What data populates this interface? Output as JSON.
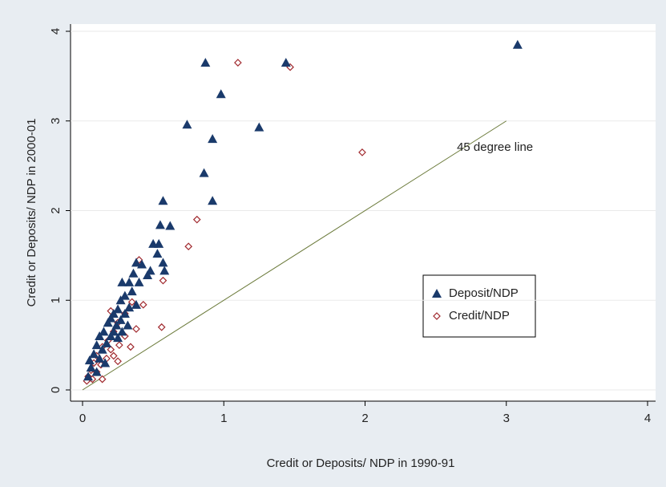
{
  "chart_data": {
    "type": "scatter",
    "x_label": "Credit or Deposits/ NDP in 1990-91",
    "y_label": "Credit or Deposits/ NDP in 2000-01",
    "xlim": [
      0,
      4
    ],
    "ylim": [
      0,
      4
    ],
    "xticks": [
      0,
      1,
      2,
      3,
      4
    ],
    "yticks": [
      0,
      1,
      2,
      3,
      4
    ],
    "grid": true,
    "legend": "right",
    "series": [
      {
        "name": "Deposit/NDP",
        "color": "#1a3a6b",
        "marker": "triangle",
        "x": [
          3.08,
          0.87,
          1.44,
          0.98,
          0.74,
          1.25,
          0.92,
          0.86,
          0.57,
          0.92,
          0.55,
          0.62,
          0.5,
          0.54,
          0.53,
          0.57,
          0.48,
          0.58,
          0.38,
          0.36,
          0.42,
          0.46,
          0.33,
          0.28,
          0.4,
          0.35,
          0.3,
          0.27,
          0.38,
          0.33,
          0.25,
          0.22,
          0.3,
          0.2,
          0.27,
          0.18,
          0.24,
          0.32,
          0.15,
          0.22,
          0.28,
          0.12,
          0.2,
          0.25,
          0.1,
          0.17,
          0.08,
          0.14,
          0.05,
          0.12,
          0.06,
          0.16,
          0.1,
          0.04
        ],
        "values": [
          3.85,
          3.65,
          3.65,
          3.3,
          2.96,
          2.93,
          2.8,
          2.42,
          2.11,
          2.11,
          1.84,
          1.83,
          1.63,
          1.63,
          1.52,
          1.42,
          1.33,
          1.33,
          1.42,
          1.3,
          1.4,
          1.28,
          1.2,
          1.2,
          1.2,
          1.1,
          1.05,
          1.0,
          0.95,
          0.92,
          0.9,
          0.85,
          0.85,
          0.8,
          0.78,
          0.75,
          0.72,
          0.72,
          0.65,
          0.65,
          0.65,
          0.6,
          0.6,
          0.58,
          0.5,
          0.52,
          0.4,
          0.45,
          0.33,
          0.35,
          0.25,
          0.3,
          0.2,
          0.15
        ]
      },
      {
        "name": "Credit/NDP",
        "color": "#a0282d",
        "marker": "diamond",
        "x": [
          1.1,
          1.47,
          1.98,
          0.81,
          0.75,
          0.4,
          0.57,
          0.56,
          0.38,
          0.43,
          0.35,
          0.3,
          0.25,
          0.2,
          0.22,
          0.3,
          0.18,
          0.26,
          0.14,
          0.2,
          0.1,
          0.17,
          0.22,
          0.08,
          0.13,
          0.06,
          0.1,
          0.04,
          0.07,
          0.14,
          0.03,
          0.34,
          0.25
        ],
        "values": [
          3.65,
          3.6,
          2.65,
          1.9,
          1.6,
          1.45,
          1.22,
          0.7,
          0.68,
          0.95,
          0.98,
          0.85,
          0.75,
          0.88,
          0.65,
          0.6,
          0.55,
          0.5,
          0.48,
          0.45,
          0.38,
          0.35,
          0.38,
          0.3,
          0.28,
          0.22,
          0.2,
          0.15,
          0.12,
          0.12,
          0.1,
          0.48,
          0.32
        ]
      }
    ],
    "reference_line": {
      "x": [
        0,
        3
      ],
      "values": [
        0,
        3
      ],
      "color": "#6b7a3a"
    },
    "annotation": {
      "text": "45 degree line",
      "x": 2.65,
      "y": 2.7
    }
  }
}
